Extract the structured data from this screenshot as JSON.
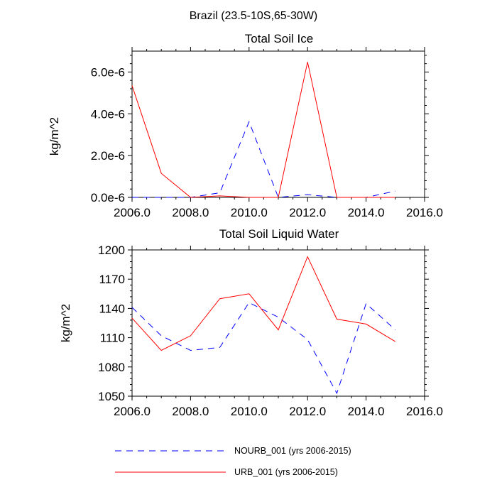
{
  "suptitle": "Brazil (23.5-10S,65-30W)",
  "legend": [
    {
      "name": "NOURB_001",
      "label": "NOURB_001 (yrs 2006-2015)",
      "color": "#0000ff",
      "dash": "dashed"
    },
    {
      "name": "URB_001",
      "label": "URB_001 (yrs 2006-2015)",
      "color": "#ff0000",
      "dash": "solid"
    }
  ],
  "chart_data": [
    {
      "type": "line",
      "title": "Total Soil Ice",
      "xlabel": "",
      "ylabel": "kg/m^2",
      "xlim": [
        2006,
        2016
      ],
      "ylim": [
        0,
        7e-06
      ],
      "xticks": [
        2006,
        2008,
        2010,
        2012,
        2014,
        2016
      ],
      "xtick_labels": [
        "2006.0",
        "2008.0",
        "2010.0",
        "2012.0",
        "2014.0",
        "2016.0"
      ],
      "yticks": [
        0,
        2e-06,
        4e-06,
        6e-06
      ],
      "ytick_labels": [
        "0.0e-6",
        "2.0e-6",
        "4.0e-6",
        "6.0e-6"
      ],
      "x": [
        2006,
        2007,
        2008,
        2009,
        2010,
        2011,
        2012,
        2013,
        2014,
        2015
      ],
      "series": [
        {
          "name": "NOURB_001",
          "values": [
            0.0,
            0.0,
            0.0,
            2.2e-07,
            3.62e-06,
            0.0,
            1.3e-07,
            0.0,
            0.0,
            3e-07
          ]
        },
        {
          "name": "URB_001",
          "values": [
            5.35e-06,
            1.15e-06,
            0.0,
            7e-08,
            0.0,
            0.0,
            6.48e-06,
            0.0,
            0.0,
            0.0
          ]
        }
      ]
    },
    {
      "type": "line",
      "title": "Total Soil Liquid Water",
      "xlabel": "",
      "ylabel": "kg/m^2",
      "xlim": [
        2006,
        2016
      ],
      "ylim": [
        1050,
        1200
      ],
      "xticks": [
        2006,
        2008,
        2010,
        2012,
        2014,
        2016
      ],
      "xtick_labels": [
        "2006.0",
        "2008.0",
        "2010.0",
        "2012.0",
        "2014.0",
        "2016.0"
      ],
      "yticks": [
        1050,
        1080,
        1110,
        1140,
        1170,
        1200
      ],
      "ytick_labels": [
        "1050",
        "1080",
        "1110",
        "1140",
        "1170",
        "1200"
      ],
      "x": [
        2006,
        2007,
        2008,
        2009,
        2010,
        2011,
        2012,
        2013,
        2014,
        2015
      ],
      "series": [
        {
          "name": "NOURB_001",
          "values": [
            1141,
            1112,
            1097,
            1100,
            1146,
            1131,
            1108,
            1053,
            1145,
            1118
          ]
        },
        {
          "name": "URB_001",
          "values": [
            1130,
            1097,
            1112,
            1150,
            1155,
            1118,
            1193,
            1129,
            1124,
            1106
          ]
        }
      ]
    }
  ]
}
